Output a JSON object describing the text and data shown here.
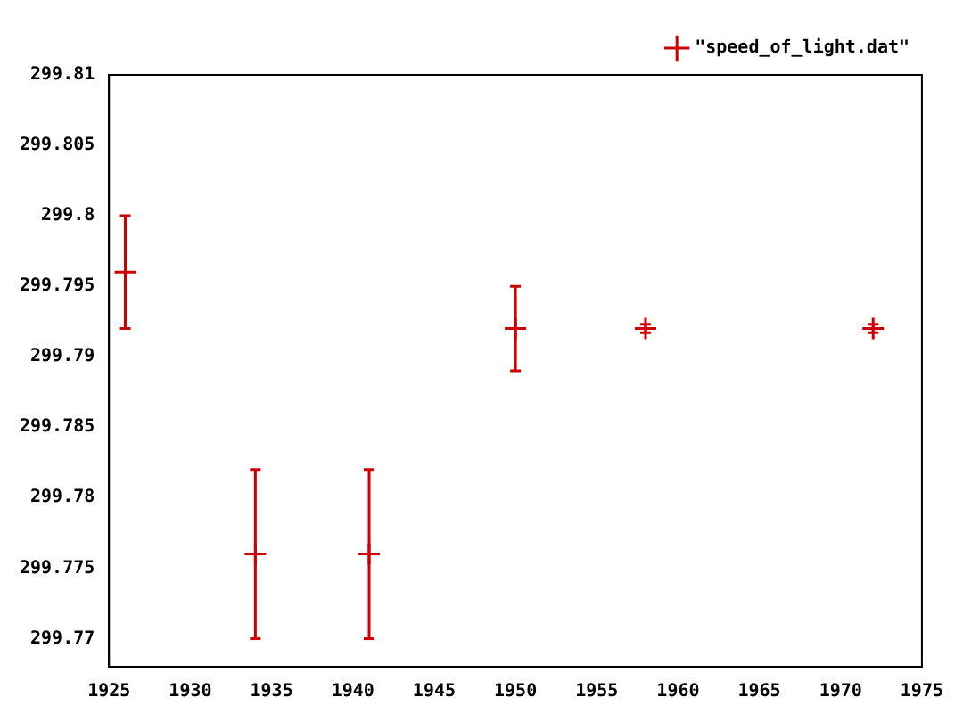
{
  "chart_data": {
    "type": "scatter",
    "legend": "top right",
    "marker": "cross",
    "x": [
      1926,
      1934,
      1941,
      1950,
      1958,
      1972
    ],
    "series": [
      {
        "name": "\"speed_of_light.dat\"",
        "color": "#cc0000",
        "values": [
          299.796,
          299.776,
          299.776,
          299.792,
          299.792,
          299.792
        ],
        "errors": [
          0.004,
          0.006,
          0.006,
          0.003,
          0.0003,
          0.0003
        ]
      }
    ],
    "xlim": [
      1925,
      1975
    ],
    "xticks": [
      1925,
      1930,
      1935,
      1940,
      1945,
      1950,
      1955,
      1960,
      1965,
      1970,
      1975
    ],
    "ylim": [
      299.768,
      299.81
    ],
    "yticks": [
      299.77,
      299.775,
      299.78,
      299.785,
      299.79,
      299.795,
      299.8,
      299.805,
      299.81
    ]
  }
}
